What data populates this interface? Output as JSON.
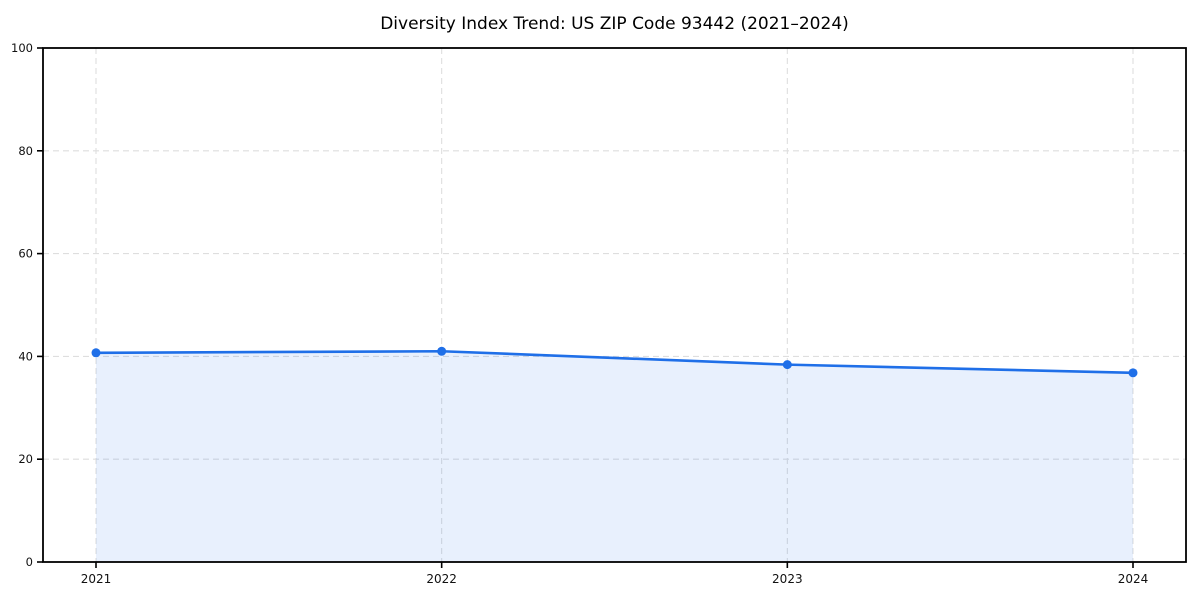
{
  "chart_data": {
    "type": "area",
    "title": "Diversity Index Trend: US ZIP Code 93442 (2021–2024)",
    "xlabel": "",
    "ylabel": "",
    "categories": [
      "2021",
      "2022",
      "2023",
      "2024"
    ],
    "x": [
      2021,
      2022,
      2023,
      2024
    ],
    "series": [
      {
        "name": "Diversity Index",
        "values": [
          40.7,
          41.0,
          38.4,
          36.8
        ]
      }
    ],
    "ylim": [
      0,
      100
    ],
    "yticks": [
      0,
      20,
      40,
      60,
      80,
      100
    ],
    "grid": "dashed, both axes",
    "legend": "none",
    "colors": {
      "line": "#1f6fe8",
      "marker": "#1f6fe8",
      "fill": "rgba(31,111,232,0.10)",
      "grid": "#dedede",
      "spine": "#000000",
      "tick_label": "#111111",
      "title": "#000000",
      "background": "#ffffff"
    }
  }
}
